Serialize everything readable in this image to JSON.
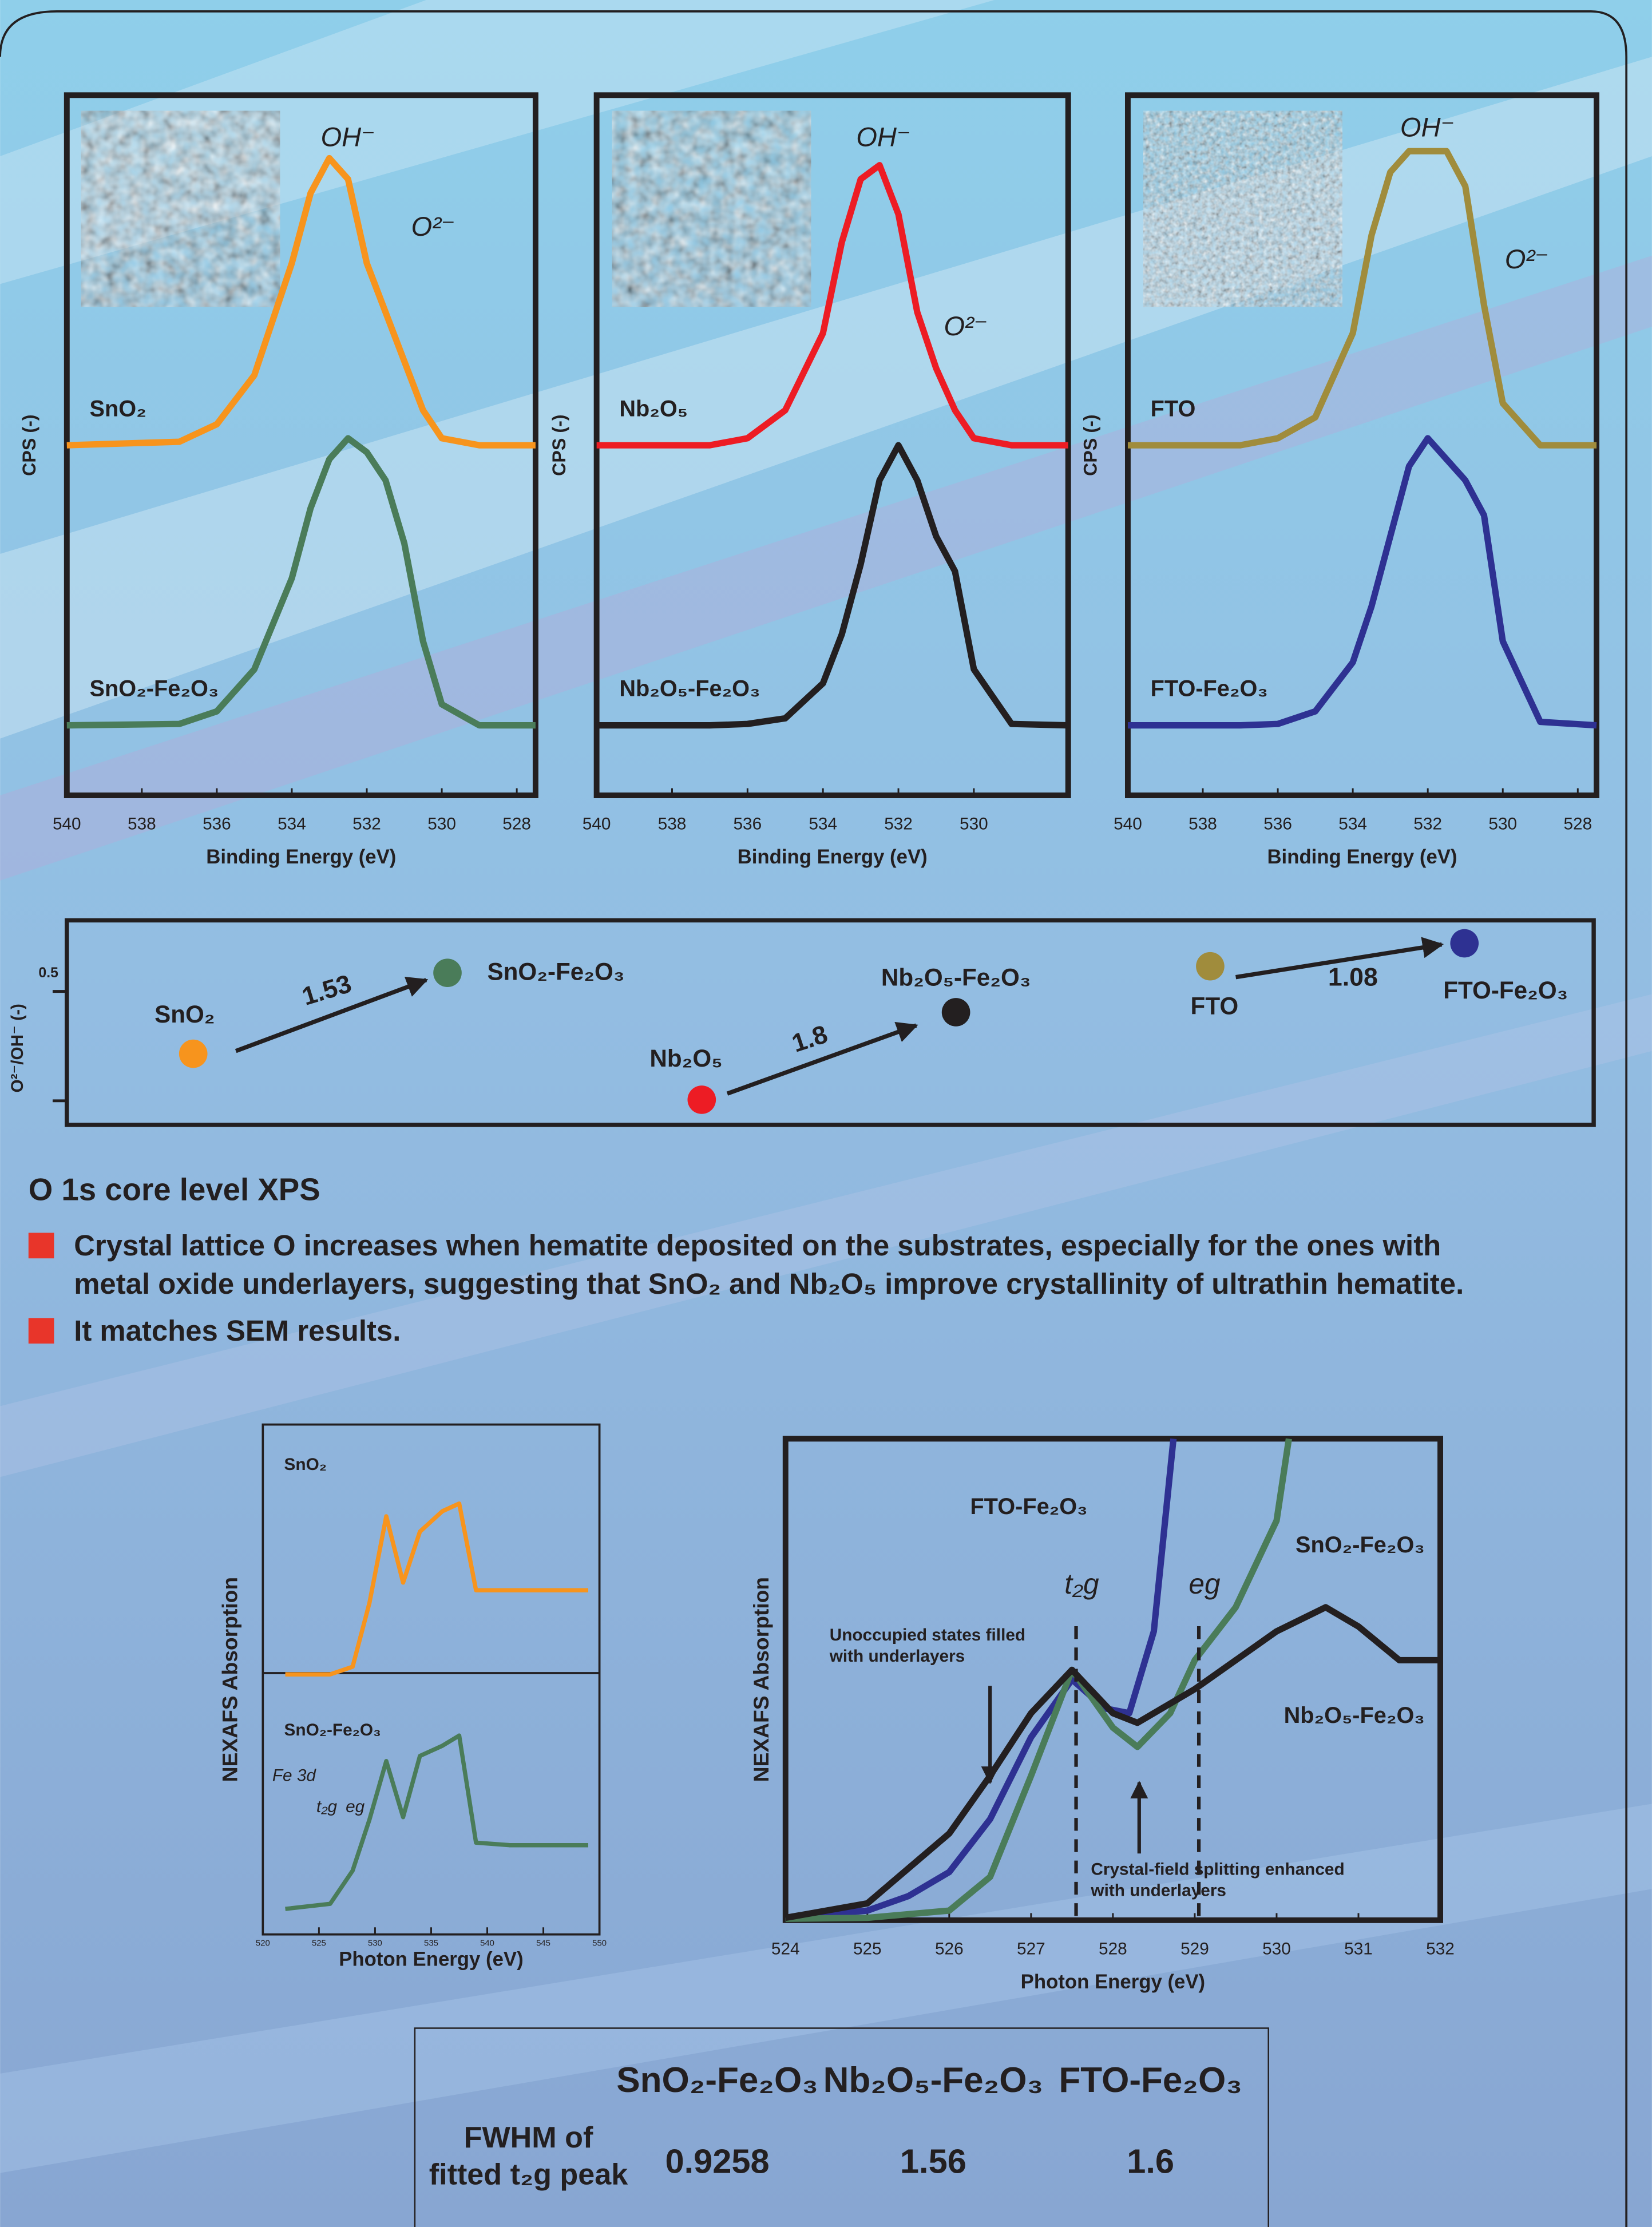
{
  "chart_data": [
    {
      "type": "line",
      "x": [
        540,
        537,
        536,
        535,
        534,
        533.5,
        533,
        532.5,
        532,
        531.5,
        531,
        530.5,
        530,
        529,
        527.5
      ],
      "xlim": [
        540,
        527.5
      ],
      "xticks": [
        540,
        538,
        536,
        534,
        532,
        530,
        528
      ],
      "xlabel": "Binding Energy (eV)",
      "ylabel": "CPS (-)",
      "ylim": [
        0,
        10
      ],
      "series": [
        {
          "name": "SnO₂",
          "color": "#f7941d",
          "values": [
            5,
            5.05,
            5.3,
            6.0,
            7.6,
            8.6,
            9.1,
            8.8,
            7.6,
            6.9,
            6.2,
            5.5,
            5.1,
            5,
            5
          ]
        },
        {
          "name": "SnO₂-Fe₂O₃",
          "color": "#4a7c59",
          "values": [
            1,
            1.02,
            1.2,
            1.8,
            3.1,
            4.1,
            4.8,
            5.1,
            4.9,
            4.5,
            3.6,
            2.2,
            1.3,
            1,
            1
          ]
        }
      ],
      "annotations": [
        "OH⁻",
        "O²⁻"
      ]
    },
    {
      "type": "line",
      "x": [
        540,
        537,
        536,
        535,
        534,
        533.5,
        533,
        532.5,
        532,
        531.5,
        531,
        530.5,
        530,
        529,
        527.5
      ],
      "xlim": [
        540,
        527.5
      ],
      "xticks": [
        540,
        538,
        536,
        534,
        532,
        530
      ],
      "xlabel": "Binding Energy (eV)",
      "ylabel": "CPS (-)",
      "ylim": [
        0,
        10
      ],
      "series": [
        {
          "name": "Nb₂O₅",
          "color": "#ed1c24",
          "values": [
            5,
            5,
            5.1,
            5.5,
            6.6,
            7.9,
            8.8,
            9.0,
            8.3,
            6.9,
            6.1,
            5.5,
            5.1,
            5,
            5
          ]
        },
        {
          "name": "Nb₂O₅-Fe₂O₃",
          "color": "#231f20",
          "values": [
            1,
            1,
            1.02,
            1.1,
            1.6,
            2.3,
            3.3,
            4.5,
            5.0,
            4.5,
            3.7,
            3.2,
            1.8,
            1.02,
            1
          ]
        }
      ],
      "annotations": [
        "OH⁻",
        "O²⁻"
      ]
    },
    {
      "type": "line",
      "x": [
        540,
        537,
        536,
        535,
        534,
        533.5,
        533,
        532.5,
        532,
        531.5,
        531,
        530.5,
        530,
        529,
        527.5
      ],
      "xlim": [
        540,
        527.5
      ],
      "xticks": [
        540,
        538,
        536,
        534,
        532,
        530,
        528
      ],
      "xlabel": "Binding Energy (eV)",
      "ylabel": "CPS (-)",
      "ylim": [
        0,
        10
      ],
      "series": [
        {
          "name": "FTO",
          "color": "#a08c3c",
          "values": [
            5,
            5,
            5.1,
            5.4,
            6.6,
            8.0,
            8.9,
            9.2,
            9.2,
            9.2,
            8.7,
            7.0,
            5.6,
            5,
            5
          ]
        },
        {
          "name": "FTO-Fe₂O₃",
          "color": "#2e3192",
          "values": [
            1,
            1,
            1.02,
            1.2,
            1.9,
            2.7,
            3.7,
            4.7,
            5.1,
            4.8,
            4.5,
            4.0,
            2.2,
            1.05,
            1
          ]
        }
      ],
      "annotations": [
        "OH⁻",
        "O²⁻"
      ]
    },
    {
      "type": "scatter",
      "ylabel": "O²⁻/OH⁻ (-)",
      "ylim": [
        0.378,
        0.565
      ],
      "yticks": [
        0.5,
        {
          "value": 0.4,
          "label": null
        }
      ],
      "categories": [
        "SnO₂",
        "SnO₂-Fe₂O₃",
        "Nb₂O₅",
        "Nb₂O₅-Fe₂O₃",
        "FTO",
        "FTO-Fe₂O₃"
      ],
      "colors": [
        "#f7941d",
        "#4a7c59",
        "#ed1c24",
        "#231f20",
        "#a08c3c",
        "#2e3192"
      ],
      "values": [
        0.443,
        0.517,
        0.401,
        0.481,
        0.523,
        0.544
      ],
      "arrow_labels": [
        1.53,
        1.8,
        1.08
      ]
    },
    {
      "type": "line",
      "x": [
        522,
        526,
        528,
        529.5,
        531,
        532.5,
        534,
        536,
        537.5,
        539,
        542,
        549
      ],
      "xlim": [
        520,
        550
      ],
      "xticks": [
        520,
        525,
        530,
        535,
        540,
        545,
        550
      ],
      "xlabel": "Photon Energy (eV)",
      "ylabel": "NEXAFS Absorption",
      "ylim": [
        0,
        2
      ],
      "series": [
        {
          "name": "SnO₂",
          "color": "#f7941d",
          "values": [
            1.02,
            1.02,
            1.05,
            1.3,
            1.64,
            1.38,
            1.58,
            1.66,
            1.69,
            1.35,
            1.35,
            1.35
          ]
        },
        {
          "name": "SnO₂-Fe₂O₃",
          "color": "#4a7c59",
          "values": [
            0.1,
            0.12,
            0.25,
            0.45,
            0.68,
            0.46,
            0.7,
            0.74,
            0.78,
            0.36,
            0.35,
            0.35
          ]
        }
      ],
      "annotations": [
        "Fe 3d",
        "t₂g",
        "eg"
      ]
    },
    {
      "type": "line",
      "xlim": [
        524,
        532
      ],
      "xticks": [
        524,
        525,
        526,
        527,
        528,
        529,
        530,
        531,
        532
      ],
      "xlabel": "Photon Energy (eV)",
      "ylabel": "NEXAFS Absorption",
      "ylim": [
        0,
        10
      ],
      "series": [
        {
          "name": "FTO-Fe₂O₃",
          "color": "#2e3192",
          "x": [
            524,
            525,
            525.5,
            526,
            526.5,
            527,
            527.5,
            527.9,
            528.2,
            528.5,
            528.74
          ],
          "values": [
            0.05,
            0.2,
            0.5,
            1.0,
            2.1,
            3.8,
            5.0,
            4.4,
            4.3,
            6.0,
            10
          ]
        },
        {
          "name": "SnO₂-Fe₂O₃",
          "color": "#4a7c59",
          "x": [
            524,
            525,
            526,
            526.5,
            527,
            527.5,
            528,
            528.3,
            528.7,
            529,
            529.5,
            530,
            530.15
          ],
          "values": [
            0.03,
            0.05,
            0.2,
            0.9,
            3.0,
            5.2,
            4.0,
            3.6,
            4.3,
            5.4,
            6.5,
            8.3,
            10
          ]
        },
        {
          "name": "Nb₂O₅-Fe₂O₃",
          "color": "#231f20",
          "x": [
            524,
            525,
            526,
            526.5,
            527,
            527.5,
            528,
            528.3,
            528.7,
            529,
            529.5,
            530,
            530.6,
            531,
            531.5,
            532
          ],
          "values": [
            0.05,
            0.35,
            1.8,
            3.0,
            4.3,
            5.2,
            4.3,
            4.1,
            4.5,
            4.8,
            5.4,
            6.0,
            6.5,
            6.1,
            5.4,
            5.4
          ]
        }
      ],
      "vlines": [
        {
          "x": 527.55,
          "label": "t₂g"
        },
        {
          "x": 529.05,
          "label": "eg"
        }
      ],
      "annotations": [
        "Unoccupied states filled",
        "with underlayers",
        "Crystal-field splitting enhanced",
        "with underlayers"
      ]
    }
  ],
  "section": {
    "title": "O 1s core level XPS",
    "bullets": [
      [
        "Crystal lattice O increases when hematite deposited on the substrates, especially for the ones with",
        "metal oxide underlayers, suggesting that SnO₂ and Nb₂O₅ improve crystallinity of ultrathin hematite."
      ],
      [
        "It matches SEM results."
      ]
    ]
  },
  "table": {
    "columns": [
      "SnO₂-Fe₂O₃",
      "Nb₂O₅-Fe₂O₃",
      "FTO-Fe₂O₃"
    ],
    "column_colors": [
      "#4a7c59",
      "#231f20",
      "#2e3192"
    ],
    "row_label": [
      "FWHM of",
      "fitted t₂g peak"
    ],
    "values": [
      0.9258,
      1.56,
      1.6
    ]
  }
}
